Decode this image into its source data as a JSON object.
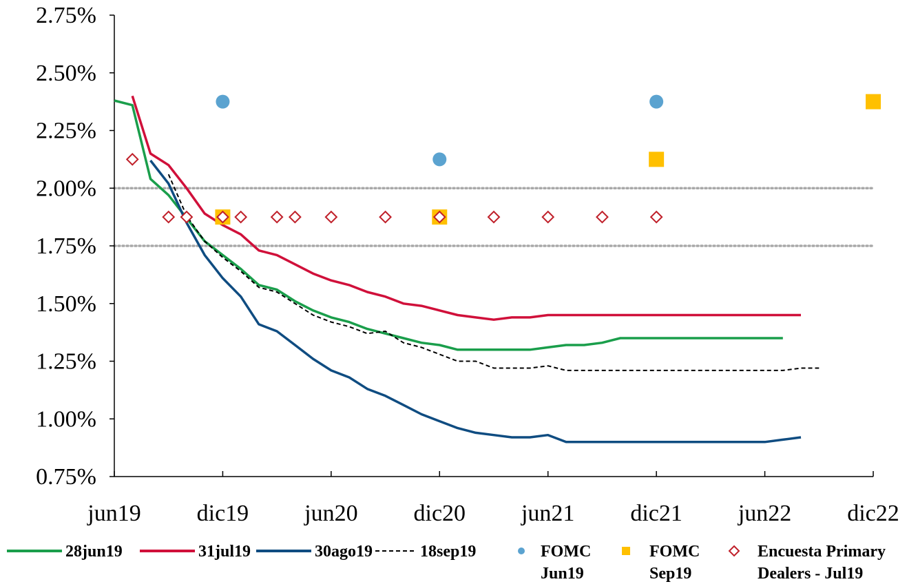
{
  "chart_data": {
    "type": "line",
    "title": "",
    "xlabel": "",
    "ylabel": "",
    "x_tick_labels": [
      "jun19",
      "dic19",
      "jun20",
      "dic20",
      "jun21",
      "dic21",
      "jun22",
      "dic22"
    ],
    "y_tick_labels": [
      "0.75%",
      "1.00%",
      "1.25%",
      "1.50%",
      "1.75%",
      "2.00%",
      "2.25%",
      "2.50%",
      "2.75%"
    ],
    "ylim": [
      0.75,
      2.75
    ],
    "xlim_months": [
      0,
      42
    ],
    "reference_lines": [
      2.0,
      1.75
    ],
    "legend_position": "bottom",
    "series": [
      {
        "name": "28jun19",
        "kind": "line",
        "color": "#1a9e4b",
        "dash": "solid",
        "points": [
          [
            0,
            2.38
          ],
          [
            1,
            2.36
          ],
          [
            2,
            2.04
          ],
          [
            3,
            1.97
          ],
          [
            4,
            1.87
          ],
          [
            5,
            1.77
          ],
          [
            6,
            1.71
          ],
          [
            7,
            1.65
          ],
          [
            8,
            1.58
          ],
          [
            9,
            1.56
          ],
          [
            10,
            1.51
          ],
          [
            11,
            1.47
          ],
          [
            12,
            1.44
          ],
          [
            13,
            1.42
          ],
          [
            14,
            1.39
          ],
          [
            15,
            1.37
          ],
          [
            16,
            1.35
          ],
          [
            17,
            1.33
          ],
          [
            18,
            1.32
          ],
          [
            19,
            1.3
          ],
          [
            20,
            1.3
          ],
          [
            21,
            1.3
          ],
          [
            22,
            1.3
          ],
          [
            23,
            1.3
          ],
          [
            24,
            1.31
          ],
          [
            25,
            1.32
          ],
          [
            26,
            1.32
          ],
          [
            27,
            1.33
          ],
          [
            28,
            1.35
          ],
          [
            29,
            1.35
          ],
          [
            30,
            1.35
          ],
          [
            31,
            1.35
          ],
          [
            32,
            1.35
          ],
          [
            33,
            1.35
          ],
          [
            34,
            1.35
          ],
          [
            35,
            1.35
          ],
          [
            36,
            1.35
          ],
          [
            37,
            1.35
          ]
        ]
      },
      {
        "name": "31jul19",
        "kind": "line",
        "color": "#d0103a",
        "dash": "solid",
        "points": [
          [
            1,
            2.4
          ],
          [
            2,
            2.15
          ],
          [
            3,
            2.1
          ],
          [
            4,
            2.0
          ],
          [
            5,
            1.89
          ],
          [
            6,
            1.84
          ],
          [
            7,
            1.8
          ],
          [
            8,
            1.73
          ],
          [
            9,
            1.71
          ],
          [
            10,
            1.67
          ],
          [
            11,
            1.63
          ],
          [
            12,
            1.6
          ],
          [
            13,
            1.58
          ],
          [
            14,
            1.55
          ],
          [
            15,
            1.53
          ],
          [
            16,
            1.5
          ],
          [
            17,
            1.49
          ],
          [
            18,
            1.47
          ],
          [
            19,
            1.45
          ],
          [
            20,
            1.44
          ],
          [
            21,
            1.43
          ],
          [
            22,
            1.44
          ],
          [
            23,
            1.44
          ],
          [
            24,
            1.45
          ],
          [
            25,
            1.45
          ],
          [
            26,
            1.45
          ],
          [
            27,
            1.45
          ],
          [
            28,
            1.45
          ],
          [
            29,
            1.45
          ],
          [
            30,
            1.45
          ],
          [
            31,
            1.45
          ],
          [
            32,
            1.45
          ],
          [
            33,
            1.45
          ],
          [
            34,
            1.45
          ],
          [
            35,
            1.45
          ],
          [
            36,
            1.45
          ],
          [
            37,
            1.45
          ],
          [
            38,
            1.45
          ]
        ]
      },
      {
        "name": "30ago19",
        "kind": "line",
        "color": "#0f4c81",
        "dash": "solid",
        "points": [
          [
            2,
            2.12
          ],
          [
            3,
            2.02
          ],
          [
            4,
            1.85
          ],
          [
            5,
            1.71
          ],
          [
            6,
            1.61
          ],
          [
            7,
            1.53
          ],
          [
            8,
            1.41
          ],
          [
            9,
            1.38
          ],
          [
            10,
            1.32
          ],
          [
            11,
            1.26
          ],
          [
            12,
            1.21
          ],
          [
            13,
            1.18
          ],
          [
            14,
            1.13
          ],
          [
            15,
            1.1
          ],
          [
            16,
            1.06
          ],
          [
            17,
            1.02
          ],
          [
            18,
            0.99
          ],
          [
            19,
            0.96
          ],
          [
            20,
            0.94
          ],
          [
            21,
            0.93
          ],
          [
            22,
            0.92
          ],
          [
            23,
            0.92
          ],
          [
            24,
            0.93
          ],
          [
            25,
            0.9
          ],
          [
            26,
            0.9
          ],
          [
            27,
            0.9
          ],
          [
            28,
            0.9
          ],
          [
            29,
            0.9
          ],
          [
            30,
            0.9
          ],
          [
            31,
            0.9
          ],
          [
            32,
            0.9
          ],
          [
            33,
            0.9
          ],
          [
            34,
            0.9
          ],
          [
            35,
            0.9
          ],
          [
            36,
            0.9
          ],
          [
            37,
            0.91
          ],
          [
            38,
            0.92
          ]
        ]
      },
      {
        "name": "18sep19",
        "kind": "line",
        "color": "#000000",
        "dash": "dashed",
        "points": [
          [
            3,
            2.06
          ],
          [
            4,
            1.88
          ],
          [
            5,
            1.77
          ],
          [
            6,
            1.7
          ],
          [
            7,
            1.64
          ],
          [
            8,
            1.57
          ],
          [
            9,
            1.55
          ],
          [
            10,
            1.5
          ],
          [
            11,
            1.45
          ],
          [
            12,
            1.42
          ],
          [
            13,
            1.4
          ],
          [
            14,
            1.37
          ],
          [
            15,
            1.38
          ],
          [
            16,
            1.33
          ],
          [
            17,
            1.31
          ],
          [
            18,
            1.28
          ],
          [
            19,
            1.25
          ],
          [
            20,
            1.25
          ],
          [
            21,
            1.22
          ],
          [
            22,
            1.22
          ],
          [
            23,
            1.22
          ],
          [
            24,
            1.23
          ],
          [
            25,
            1.21
          ],
          [
            26,
            1.21
          ],
          [
            27,
            1.21
          ],
          [
            28,
            1.21
          ],
          [
            29,
            1.21
          ],
          [
            30,
            1.21
          ],
          [
            31,
            1.21
          ],
          [
            32,
            1.21
          ],
          [
            33,
            1.21
          ],
          [
            34,
            1.21
          ],
          [
            35,
            1.21
          ],
          [
            36,
            1.21
          ],
          [
            37,
            1.21
          ],
          [
            38,
            1.22
          ],
          [
            39,
            1.22
          ]
        ]
      },
      {
        "name": "FOMC\nJun19",
        "kind": "marker",
        "marker": "circle",
        "color": "#5ba3d0",
        "points": [
          [
            6,
            2.375
          ],
          [
            18,
            2.125
          ],
          [
            30,
            2.375
          ]
        ]
      },
      {
        "name": "FOMC\nSep19",
        "kind": "marker",
        "marker": "square",
        "color": "#ffc000",
        "points": [
          [
            6,
            1.875
          ],
          [
            18,
            1.875
          ],
          [
            30,
            2.125
          ],
          [
            42,
            2.375
          ]
        ]
      },
      {
        "name": "Encuesta Primary\nDealers - Jul19",
        "kind": "marker",
        "marker": "diamond",
        "color": "#c0202a",
        "points": [
          [
            1,
            2.125
          ],
          [
            3,
            1.875
          ],
          [
            4,
            1.875
          ],
          [
            6,
            1.875
          ],
          [
            7,
            1.875
          ],
          [
            9,
            1.875
          ],
          [
            10,
            1.875
          ],
          [
            12,
            1.875
          ],
          [
            15,
            1.875
          ],
          [
            18,
            1.875
          ],
          [
            21,
            1.875
          ],
          [
            24,
            1.875
          ],
          [
            27,
            1.875
          ],
          [
            30,
            1.875
          ]
        ]
      }
    ]
  }
}
